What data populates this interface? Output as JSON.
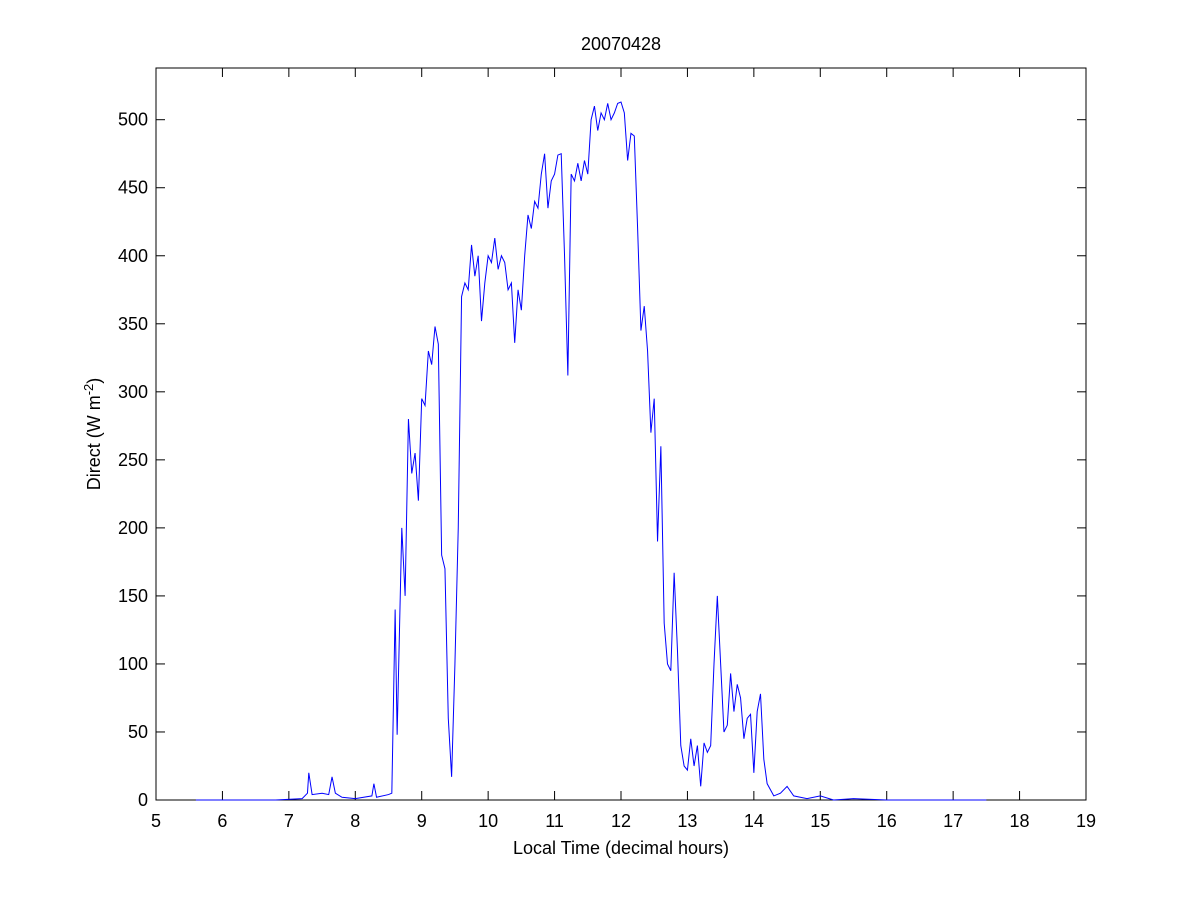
{
  "chart_data": {
    "type": "line",
    "title": "20070428",
    "xlabel": "Local Time (decimal hours)",
    "ylabel": [
      "Direct (W m",
      "-2",
      ")"
    ],
    "xlim": [
      5,
      19
    ],
    "ylim": [
      0,
      538
    ],
    "xticks": [
      5,
      6,
      7,
      8,
      9,
      10,
      11,
      12,
      13,
      14,
      15,
      16,
      17,
      18,
      19
    ],
    "yticks": [
      0,
      50,
      100,
      150,
      200,
      250,
      300,
      350,
      400,
      450,
      500
    ],
    "series": [
      {
        "color": "#0000ff",
        "x": [
          5.6,
          6.8,
          7.2,
          7.28,
          7.3,
          7.35,
          7.5,
          7.6,
          7.65,
          7.7,
          7.8,
          8.0,
          8.25,
          8.28,
          8.32,
          8.5,
          8.55,
          8.6,
          8.63,
          8.7,
          8.75,
          8.8,
          8.85,
          8.9,
          8.95,
          9.0,
          9.05,
          9.1,
          9.15,
          9.2,
          9.25,
          9.3,
          9.35,
          9.4,
          9.45,
          9.5,
          9.55,
          9.6,
          9.65,
          9.7,
          9.75,
          9.8,
          9.85,
          9.9,
          9.95,
          10.0,
          10.05,
          10.1,
          10.15,
          10.2,
          10.25,
          10.3,
          10.35,
          10.4,
          10.45,
          10.5,
          10.55,
          10.6,
          10.65,
          10.7,
          10.75,
          10.8,
          10.85,
          10.9,
          10.95,
          11.0,
          11.05,
          11.1,
          11.15,
          11.2,
          11.25,
          11.3,
          11.35,
          11.4,
          11.45,
          11.5,
          11.55,
          11.6,
          11.65,
          11.7,
          11.75,
          11.8,
          11.85,
          11.9,
          11.95,
          12.0,
          12.05,
          12.1,
          12.15,
          12.2,
          12.25,
          12.3,
          12.35,
          12.4,
          12.45,
          12.5,
          12.55,
          12.6,
          12.65,
          12.7,
          12.75,
          12.8,
          12.85,
          12.9,
          12.95,
          13.0,
          13.05,
          13.1,
          13.15,
          13.2,
          13.25,
          13.3,
          13.35,
          13.4,
          13.45,
          13.5,
          13.55,
          13.6,
          13.65,
          13.7,
          13.75,
          13.8,
          13.85,
          13.9,
          13.95,
          14.0,
          14.05,
          14.1,
          14.15,
          14.2,
          14.3,
          14.4,
          14.5,
          14.6,
          14.8,
          15.0,
          15.2,
          15.5,
          16.0,
          17.5
        ],
        "values": [
          0,
          0,
          1,
          5,
          20,
          4,
          5,
          4,
          17,
          5,
          2,
          1,
          3,
          12,
          2,
          4,
          5,
          140,
          48,
          200,
          150,
          280,
          240,
          255,
          220,
          295,
          290,
          330,
          320,
          348,
          335,
          180,
          170,
          60,
          17,
          100,
          200,
          370,
          380,
          375,
          408,
          385,
          400,
          352,
          380,
          400,
          395,
          413,
          390,
          400,
          395,
          375,
          380,
          336,
          375,
          360,
          400,
          430,
          420,
          440,
          435,
          460,
          475,
          435,
          455,
          460,
          474,
          475,
          400,
          312,
          460,
          455,
          468,
          455,
          470,
          460,
          500,
          510,
          492,
          505,
          500,
          512,
          500,
          505,
          512,
          513,
          505,
          470,
          490,
          488,
          420,
          345,
          363,
          330,
          270,
          295,
          190,
          260,
          130,
          100,
          95,
          167,
          110,
          40,
          25,
          22,
          45,
          25,
          40,
          10,
          42,
          35,
          40,
          100,
          150,
          100,
          50,
          55,
          93,
          65,
          85,
          75,
          45,
          60,
          63,
          20,
          65,
          78,
          30,
          12,
          3,
          5,
          10,
          3,
          1,
          3,
          0,
          1,
          0,
          0
        ]
      }
    ]
  }
}
